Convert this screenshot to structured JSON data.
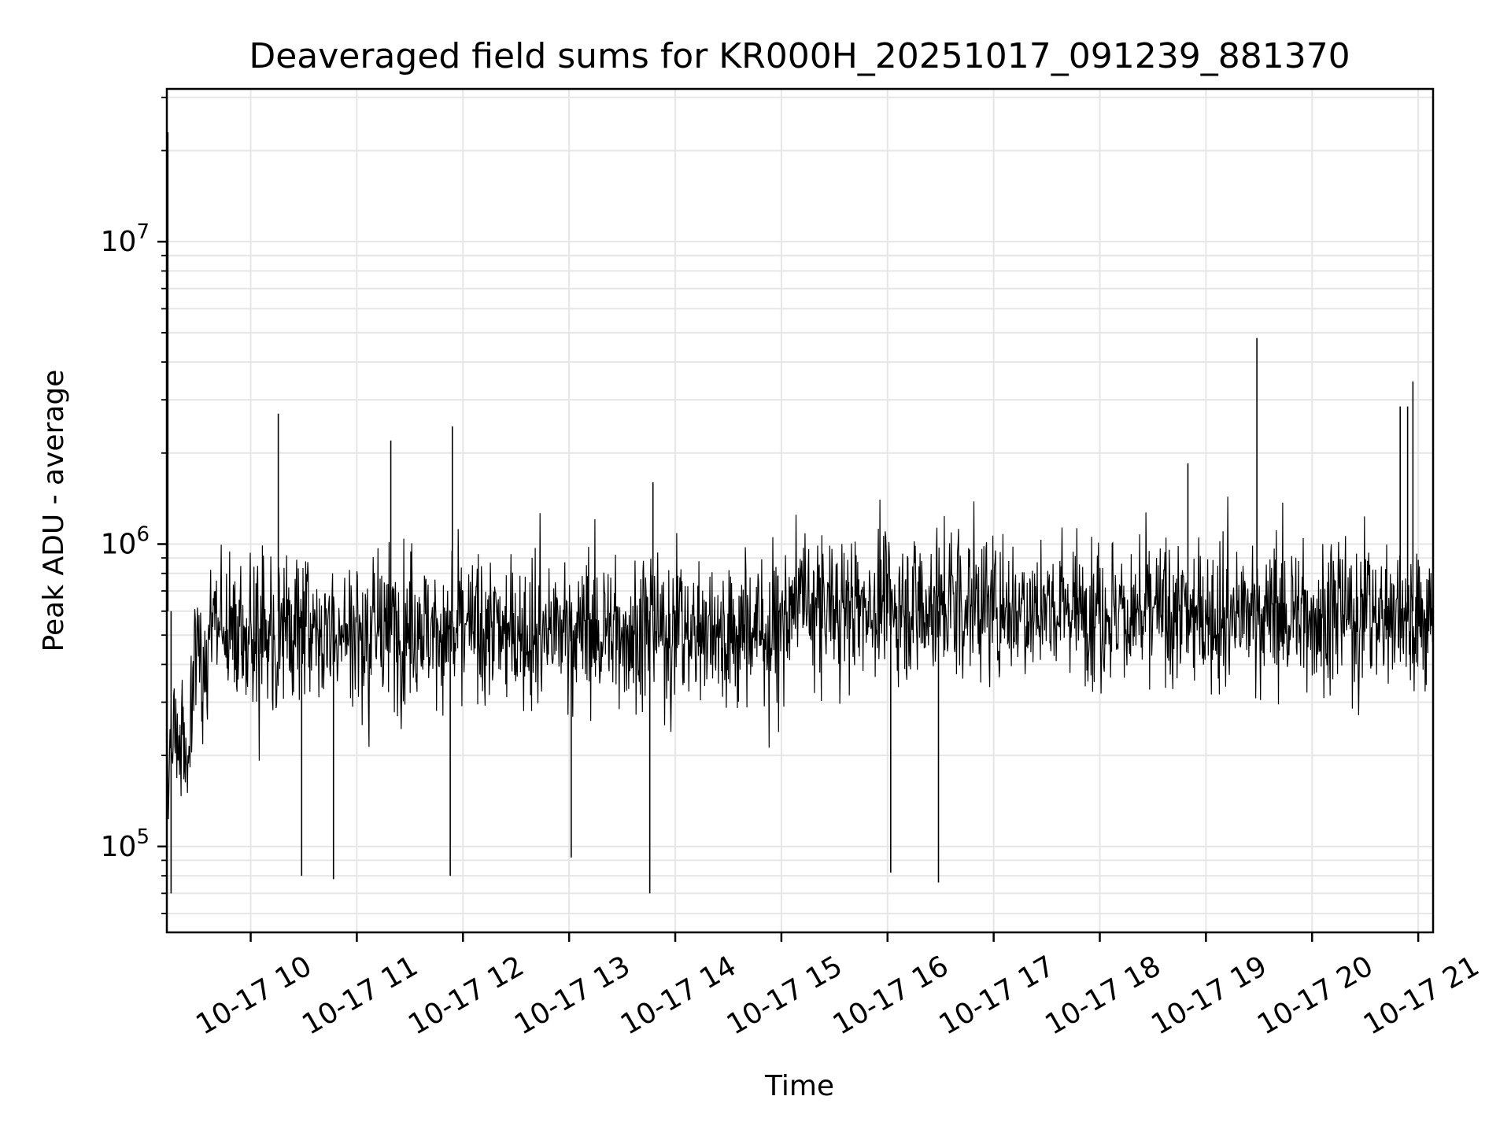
{
  "chart_data": {
    "type": "line",
    "title": "Deaveraged field sums for KR000H_20251017_091239_881370",
    "xlabel": "Time",
    "ylabel": "Peak ADU - average",
    "yscale": "log",
    "ylim": [
      52000,
      32000000
    ],
    "xlim_hours": [
      9.21,
      21.14
    ],
    "grid": true,
    "grid_color": "#e6e6e6",
    "line_color": "#000000",
    "x_tick_labels": [
      "10-17 10",
      "10-17 11",
      "10-17 12",
      "10-17 13",
      "10-17 14",
      "10-17 15",
      "10-17 16",
      "10-17 17",
      "10-17 18",
      "10-17 19",
      "10-17 20",
      "10-17 21"
    ],
    "x_tick_hours": [
      10,
      11,
      12,
      13,
      14,
      15,
      16,
      17,
      18,
      19,
      20,
      21
    ],
    "y_ticks": [
      {
        "value": 100000,
        "base": "10",
        "exp": "5"
      },
      {
        "value": 1000000,
        "base": "10",
        "exp": "6"
      },
      {
        "value": 10000000,
        "base": "10",
        "exp": "7"
      }
    ],
    "series": [
      {
        "name": "deaveraged field sum",
        "sampling": "dense noisy series approx. 1 sample per 2.5 s; baseline rises from ~3e5 to ~6e5 with fluctuations between ~1e5 and ~1.5e6",
        "spikes": [
          {
            "t": 9.22,
            "value": 23000000
          },
          {
            "t": 10.26,
            "value": 2700000
          },
          {
            "t": 11.32,
            "value": 2200000
          },
          {
            "t": 11.9,
            "value": 2450000
          },
          {
            "t": 13.79,
            "value": 1600000
          },
          {
            "t": 18.83,
            "value": 1850000
          },
          {
            "t": 19.48,
            "value": 4800000
          },
          {
            "t": 20.83,
            "value": 2850000
          },
          {
            "t": 20.9,
            "value": 2850000
          },
          {
            "t": 20.95,
            "value": 3450000
          },
          {
            "t": 9.25,
            "value": 70000
          },
          {
            "t": 10.48,
            "value": 80000
          },
          {
            "t": 10.78,
            "value": 78000
          },
          {
            "t": 11.88,
            "value": 80000
          },
          {
            "t": 13.02,
            "value": 92000
          },
          {
            "t": 13.76,
            "value": 70000
          },
          {
            "t": 16.03,
            "value": 82000
          },
          {
            "t": 16.48,
            "value": 76000
          }
        ]
      }
    ]
  }
}
